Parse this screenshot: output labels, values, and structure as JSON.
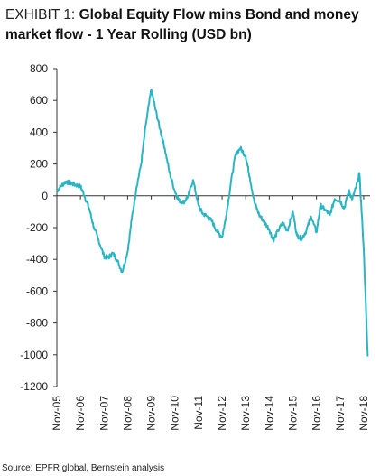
{
  "header": {
    "exhibit": "EXHIBIT 1:",
    "title": "Global Equity Flow mins Bond and money market flow - 1 Year Rolling (USD bn)"
  },
  "source": "Source: EPFR global, Bernstein analysis",
  "chart_data": {
    "type": "line",
    "title": "Global Equity Flow mins Bond and money market flow - 1 Year Rolling (USD bn)",
    "xlabel": "",
    "ylabel": "",
    "ylim": [
      -1200,
      800
    ],
    "yticks": [
      800,
      600,
      400,
      200,
      0,
      -200,
      -400,
      -600,
      -800,
      -1000,
      -1200
    ],
    "categories": [
      "Nov-05",
      "Nov-06",
      "Nov-07",
      "Nov-08",
      "Nov-09",
      "Nov-10",
      "Nov-11",
      "Nov-12",
      "Nov-13",
      "Nov-14",
      "Nov-15",
      "Nov-16",
      "Nov-17",
      "Nov-18"
    ],
    "line_color": "#2bb5c4",
    "series": [
      {
        "name": "",
        "x": [
          2005.83,
          2006.0,
          2006.2,
          2006.4,
          2006.6,
          2006.83,
          2007.0,
          2007.2,
          2007.4,
          2007.6,
          2007.83,
          2008.0,
          2008.2,
          2008.4,
          2008.6,
          2008.83,
          2009.0,
          2009.2,
          2009.4,
          2009.6,
          2009.83,
          2010.0,
          2010.2,
          2010.4,
          2010.6,
          2010.83,
          2011.0,
          2011.2,
          2011.4,
          2011.6,
          2011.83,
          2012.0,
          2012.2,
          2012.4,
          2012.6,
          2012.83,
          2013.0,
          2013.2,
          2013.4,
          2013.6,
          2013.83,
          2014.0,
          2014.2,
          2014.4,
          2014.6,
          2014.83,
          2015.0,
          2015.2,
          2015.4,
          2015.6,
          2015.83,
          2016.0,
          2016.2,
          2016.4,
          2016.6,
          2016.83,
          2017.0,
          2017.2,
          2017.4,
          2017.6,
          2017.83,
          2018.0,
          2018.2,
          2018.35,
          2018.5,
          2018.65,
          2018.83,
          2019.0
        ],
        "values": [
          30,
          60,
          90,
          80,
          70,
          60,
          0,
          -80,
          -200,
          -280,
          -380,
          -390,
          -360,
          -410,
          -480,
          -350,
          -150,
          50,
          200,
          450,
          670,
          550,
          420,
          300,
          150,
          30,
          -30,
          -40,
          0,
          100,
          -60,
          -110,
          -130,
          -160,
          -220,
          -260,
          -130,
          80,
          260,
          300,
          250,
          120,
          -40,
          -120,
          -160,
          -210,
          -280,
          -220,
          -170,
          -220,
          -100,
          -250,
          -270,
          -220,
          -130,
          -230,
          -60,
          -90,
          -120,
          -20,
          -30,
          -80,
          30,
          -20,
          50,
          140,
          -330,
          -1010
        ]
      }
    ]
  }
}
